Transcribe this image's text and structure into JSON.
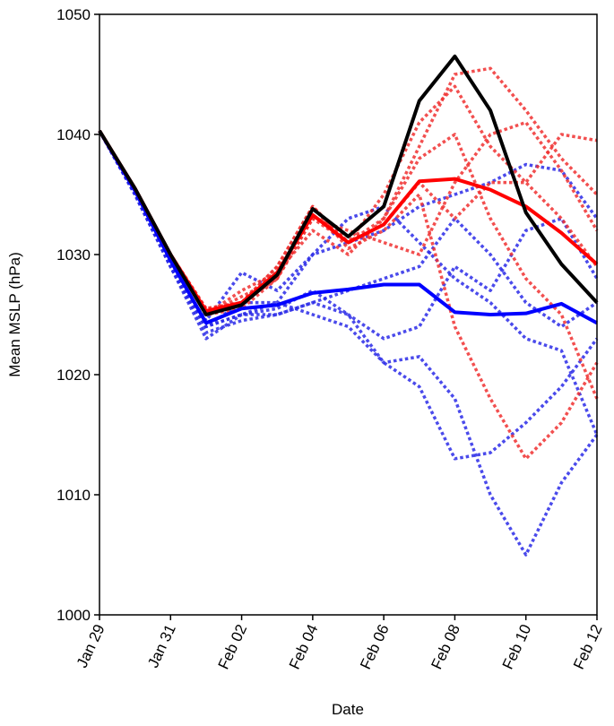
{
  "chart_data": {
    "type": "line",
    "xlabel": "Date",
    "ylabel": "Mean MSLP (hPa)",
    "x": [
      "Jan 29",
      "Jan 30",
      "Jan 31",
      "Feb 01",
      "Feb 02",
      "Feb 03",
      "Feb 04",
      "Feb 05",
      "Feb 06",
      "Feb 07",
      "Feb 08",
      "Feb 09",
      "Feb 10",
      "Feb 11",
      "Feb 12"
    ],
    "xticks": [
      "Jan 29",
      "Jan 31",
      "Feb 02",
      "Feb 04",
      "Feb 06",
      "Feb 08",
      "Feb 10",
      "Feb 12"
    ],
    "ylim": [
      1000,
      1050
    ],
    "yticks": [
      1000,
      1010,
      1020,
      1030,
      1040,
      1050
    ],
    "series": [
      {
        "color": "#2a2ae8",
        "style": "dotted",
        "values": [
          1040.3,
          1035,
          1029,
          1023.5,
          1024.5,
          1025,
          1026,
          1025,
          1021,
          1019,
          1013,
          1013.5,
          1016,
          1019,
          1023
        ]
      },
      {
        "color": "#2a2ae8",
        "style": "dotted",
        "values": [
          1040.3,
          1035,
          1029,
          1024,
          1026,
          1026,
          1025,
          1024,
          1021,
          1021.5,
          1018,
          1010,
          1005,
          1011,
          1015
        ]
      },
      {
        "color": "#2a2ae8",
        "style": "dotted",
        "values": [
          1040.3,
          1035,
          1029,
          1024,
          1025,
          1026,
          1030,
          1031,
          1032,
          1034,
          1035,
          1036,
          1037.5,
          1037,
          1033
        ]
      },
      {
        "color": "#2a2ae8",
        "style": "dotted",
        "values": [
          1040.3,
          1035,
          1029,
          1024.5,
          1028.5,
          1027,
          1030,
          1033,
          1034,
          1031,
          1028,
          1026,
          1023,
          1022,
          1015
        ]
      },
      {
        "color": "#2a2ae8",
        "style": "dotted",
        "values": [
          1040.3,
          1035,
          1029,
          1023,
          1025,
          1025,
          1026,
          1027,
          1028,
          1029,
          1033,
          1030,
          1026,
          1024,
          1026
        ]
      },
      {
        "color": "#2a2ae8",
        "style": "dotted",
        "values": [
          1040.3,
          1035,
          1029,
          1024,
          1025,
          1025.5,
          1027,
          1025,
          1023,
          1024,
          1029,
          1027,
          1032,
          1033,
          1028
        ]
      },
      {
        "color": "#f03030",
        "style": "dotted",
        "values": [
          1040.3,
          1035.5,
          1030,
          1025.5,
          1026,
          1029,
          1034,
          1031,
          1033,
          1039,
          1045,
          1045.5,
          1042,
          1038,
          1035
        ]
      },
      {
        "color": "#f03030",
        "style": "dotted",
        "values": [
          1040.3,
          1035.5,
          1030,
          1025,
          1026.5,
          1028,
          1033,
          1031,
          1035,
          1041,
          1044,
          1039,
          1036,
          1040,
          1039.5
        ]
      },
      {
        "color": "#f03030",
        "style": "dotted",
        "values": [
          1040.3,
          1035.5,
          1030,
          1025,
          1026,
          1029,
          1034,
          1030.5,
          1032,
          1035,
          1024,
          1018,
          1013,
          1016,
          1021
        ]
      },
      {
        "color": "#f03030",
        "style": "dotted",
        "values": [
          1040.3,
          1035.5,
          1030,
          1025.5,
          1026,
          1028,
          1033,
          1032,
          1031,
          1030,
          1036,
          1040,
          1041,
          1037,
          1032
        ]
      },
      {
        "color": "#f03030",
        "style": "dotted",
        "values": [
          1040.3,
          1035.5,
          1030,
          1025,
          1027,
          1028.5,
          1032,
          1030,
          1033,
          1038,
          1040,
          1033,
          1028,
          1025,
          1018
        ]
      },
      {
        "color": "#f03030",
        "style": "dotted",
        "values": [
          1040.3,
          1035.5,
          1030,
          1025,
          1025.5,
          1028,
          1034,
          1031,
          1032.5,
          1036,
          1033,
          1036,
          1036,
          1033,
          1029
        ]
      },
      {
        "color": "#0000ff",
        "style": "solid",
        "values": [
          1040.3,
          1035.3,
          1029.5,
          1024.3,
          1025.5,
          1025.8,
          1026.8,
          1027.1,
          1027.5,
          1027.5,
          1025.2,
          1025,
          1025.1,
          1025.9,
          1024.3
        ]
      },
      {
        "color": "#ff0000",
        "style": "solid",
        "values": [
          1040.3,
          1035.5,
          1030,
          1025.3,
          1026,
          1028.5,
          1033.3,
          1031,
          1032.5,
          1036.1,
          1036.3,
          1035.4,
          1034,
          1031.8,
          1029.2
        ]
      },
      {
        "color": "#000000",
        "style": "solid",
        "values": [
          1040.3,
          1035.5,
          1030,
          1025,
          1025.8,
          1028.3,
          1033.8,
          1031.5,
          1034,
          1042.8,
          1046.5,
          1042,
          1033.5,
          1029.2,
          1026
        ]
      }
    ]
  }
}
